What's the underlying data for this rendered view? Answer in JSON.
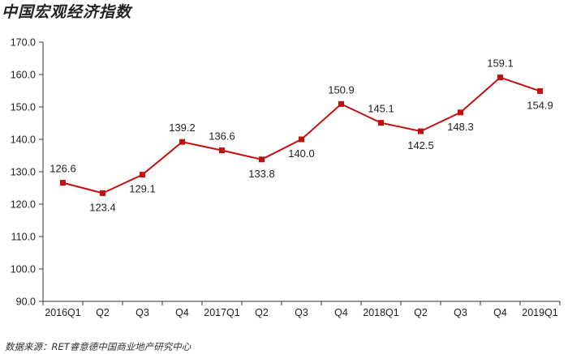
{
  "title": "中国宏观经济指数",
  "source": "数据来源：RET睿意德中国商业地产研究中心",
  "colors": {
    "series": "#c40f0f",
    "axis": "#333333",
    "background": "#ffffff"
  },
  "chart_data": {
    "type": "line",
    "title": "中国宏观经济指数",
    "categories": [
      "2016Q1",
      "Q2",
      "Q3",
      "Q4",
      "2017Q1",
      "Q2",
      "Q3",
      "Q4",
      "2018Q1",
      "Q2",
      "Q3",
      "Q4",
      "2019Q1"
    ],
    "series": [
      {
        "values": [
          126.6,
          123.4,
          129.1,
          139.2,
          136.6,
          133.8,
          140.0,
          150.9,
          145.1,
          142.5,
          148.3,
          159.1,
          154.9
        ]
      }
    ],
    "value_labels": [
      "126.6",
      "123.4",
      "129.1",
      "139.2",
      "136.6",
      "133.8",
      "140.0",
      "150.9",
      "145.1",
      "142.5",
      "148.3",
      "159.1",
      "154.9"
    ],
    "yticks": [
      "90.0",
      "100.0",
      "110.0",
      "120.0",
      "130.0",
      "140.0",
      "150.0",
      "160.0",
      "170.0"
    ],
    "ylim": [
      90,
      170
    ],
    "grid": false,
    "legend": "none"
  }
}
